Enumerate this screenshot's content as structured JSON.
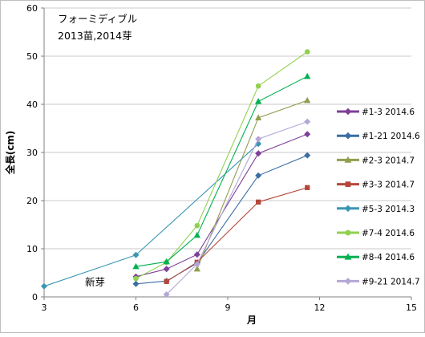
{
  "chart_data": {
    "type": "line",
    "annotations": [
      "フォーミディブル",
      "2013苗,2014芽",
      "新芽"
    ],
    "xlabel": "月",
    "ylabel": "全長(cm)",
    "xlim": [
      3,
      15
    ],
    "ylim": [
      0,
      60
    ],
    "xticks": [
      "3",
      "6",
      "9",
      "12",
      "15"
    ],
    "yticks": [
      "0",
      "10",
      "20",
      "30",
      "40",
      "50",
      "60"
    ],
    "grid": "horizontal",
    "legend": "right",
    "series": [
      {
        "name": "#1-3 2014.6",
        "color": "#7f3f98",
        "marker": "diamond",
        "x": [
          6,
          7,
          8,
          10,
          11.6
        ],
        "y": [
          4.2,
          5.8,
          8.8,
          29.8,
          33.8
        ]
      },
      {
        "name": "#1-21 2014.6",
        "color": "#3a6ea5",
        "marker": "diamond",
        "x": [
          6,
          7,
          8,
          10,
          11.6
        ],
        "y": [
          2.7,
          3.3,
          7.0,
          25.2,
          29.4
        ]
      },
      {
        "name": "#2-3 2014.7",
        "color": "#8f9f4f",
        "marker": "triangle",
        "x": [
          8,
          10,
          11.6
        ],
        "y": [
          5.8,
          37.2,
          40.8
        ]
      },
      {
        "name": "#3-3 2014.7",
        "color": "#b5473a",
        "marker": "square",
        "x": [
          7,
          8,
          10,
          11.6
        ],
        "y": [
          3.2,
          7.2,
          19.7,
          22.7
        ]
      },
      {
        "name": "#5-3 2014.3",
        "color": "#3b96b5",
        "marker": "diamond",
        "x": [
          3,
          6,
          10
        ],
        "y": [
          2.2,
          8.7,
          31.8
        ]
      },
      {
        "name": "#7-4 2014.6",
        "color": "#92d050",
        "marker": "circle",
        "x": [
          6,
          7,
          8,
          10,
          11.6
        ],
        "y": [
          3.8,
          7.2,
          14.8,
          43.8,
          50.9
        ]
      },
      {
        "name": "#8-4 2014.6",
        "color": "#00b050",
        "marker": "triangle",
        "x": [
          6,
          7,
          8,
          10,
          11.6
        ],
        "y": [
          6.3,
          7.3,
          12.8,
          40.6,
          45.8
        ]
      },
      {
        "name": "#9-21 2014.7",
        "color": "#b4a7d6",
        "marker": "diamond",
        "x": [
          7,
          8,
          10,
          11.6
        ],
        "y": [
          0.5,
          6.8,
          32.8,
          36.4
        ]
      }
    ]
  }
}
